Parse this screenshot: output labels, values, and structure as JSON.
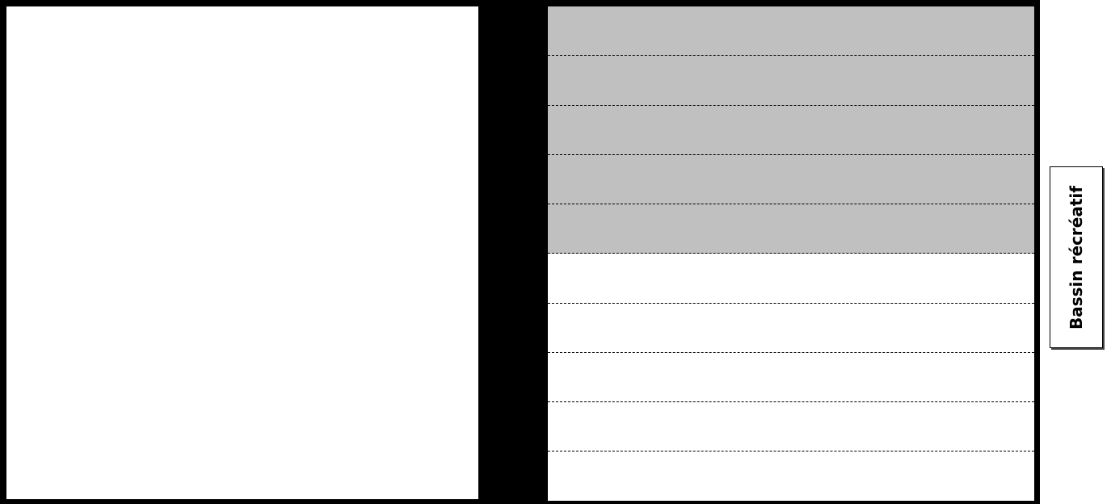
{
  "diagram": {
    "side_label": "Bassin récréatif",
    "lanes": [
      {
        "fill": "shaded"
      },
      {
        "fill": "shaded"
      },
      {
        "fill": "shaded"
      },
      {
        "fill": "shaded"
      },
      {
        "fill": "shaded"
      },
      {
        "fill": "plain"
      },
      {
        "fill": "plain"
      },
      {
        "fill": "plain"
      },
      {
        "fill": "plain"
      },
      {
        "fill": "plain"
      }
    ],
    "colors": {
      "frame": "#000000",
      "shaded_lane": "#c0c0c0",
      "plain_lane": "#ffffff",
      "divider": "#000000"
    }
  }
}
